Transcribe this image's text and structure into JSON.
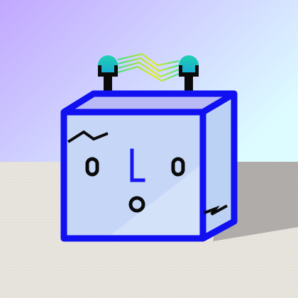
{
  "scene": {
    "subject": "cube-robot-character",
    "icons": [
      "antenna-icon",
      "electric-spark-icon",
      "eye-icon",
      "nose-icon",
      "mouth-icon",
      "eyebrow-icon",
      "crack-icon"
    ]
  },
  "colors": {
    "sky_top_left": "#c2a8ff",
    "sky_bottom_right": "#ddfcff",
    "floor": "#e6e2dc",
    "floor_shadow": "#a8a6a3",
    "cube_outline": "#1010f0",
    "cube_face": "#c6d6f6",
    "cube_face_light": "#d6e4fa",
    "cube_top": "#b9b9f6",
    "cube_side": "#bcd2f4",
    "feature_black": "#0a0a0a",
    "feature_blue": "#1616f0",
    "antenna_ball_top": "#1fd0b0",
    "antenna_ball_bottom": "#17a7d8",
    "spark_yellow": "#e8f000",
    "spark_green": "#3ee080"
  }
}
